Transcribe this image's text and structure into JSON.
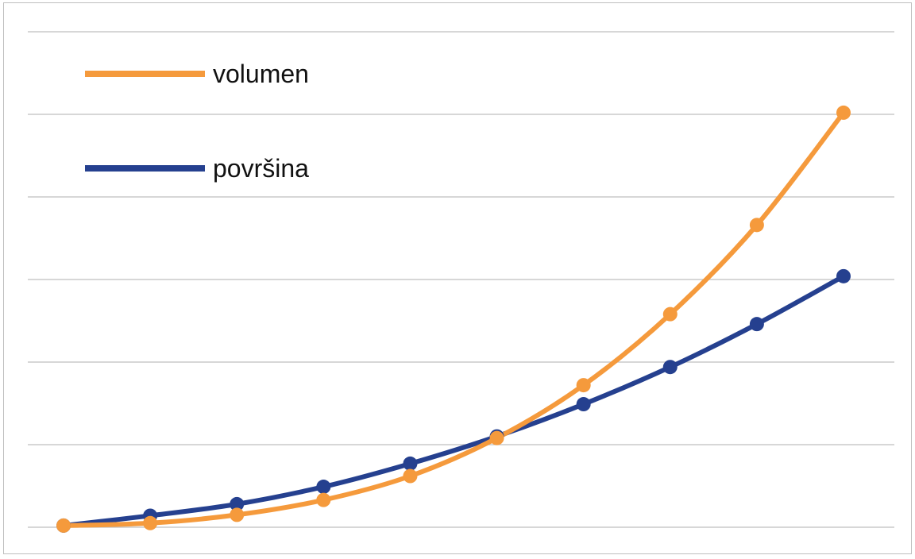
{
  "chart_data": {
    "type": "line",
    "title": "",
    "xlabel": "",
    "ylabel": "",
    "x": [
      1,
      2,
      3,
      4,
      5,
      6,
      7,
      8,
      9,
      10
    ],
    "ylim": [
      0,
      6
    ],
    "gridlines": [
      0,
      1,
      2,
      3,
      4,
      5,
      6
    ],
    "grid": true,
    "smooth": true,
    "legend_position": "top-left",
    "series": [
      {
        "name": "volumen",
        "color": "#f59a3c",
        "values": [
          0.02,
          0.05,
          0.15,
          0.33,
          0.62,
          1.08,
          1.72,
          2.58,
          3.66,
          5.02
        ]
      },
      {
        "name": "površina",
        "color": "#25408f",
        "values": [
          0.02,
          0.14,
          0.28,
          0.49,
          0.77,
          1.1,
          1.49,
          1.94,
          2.46,
          3.04
        ]
      }
    ]
  }
}
